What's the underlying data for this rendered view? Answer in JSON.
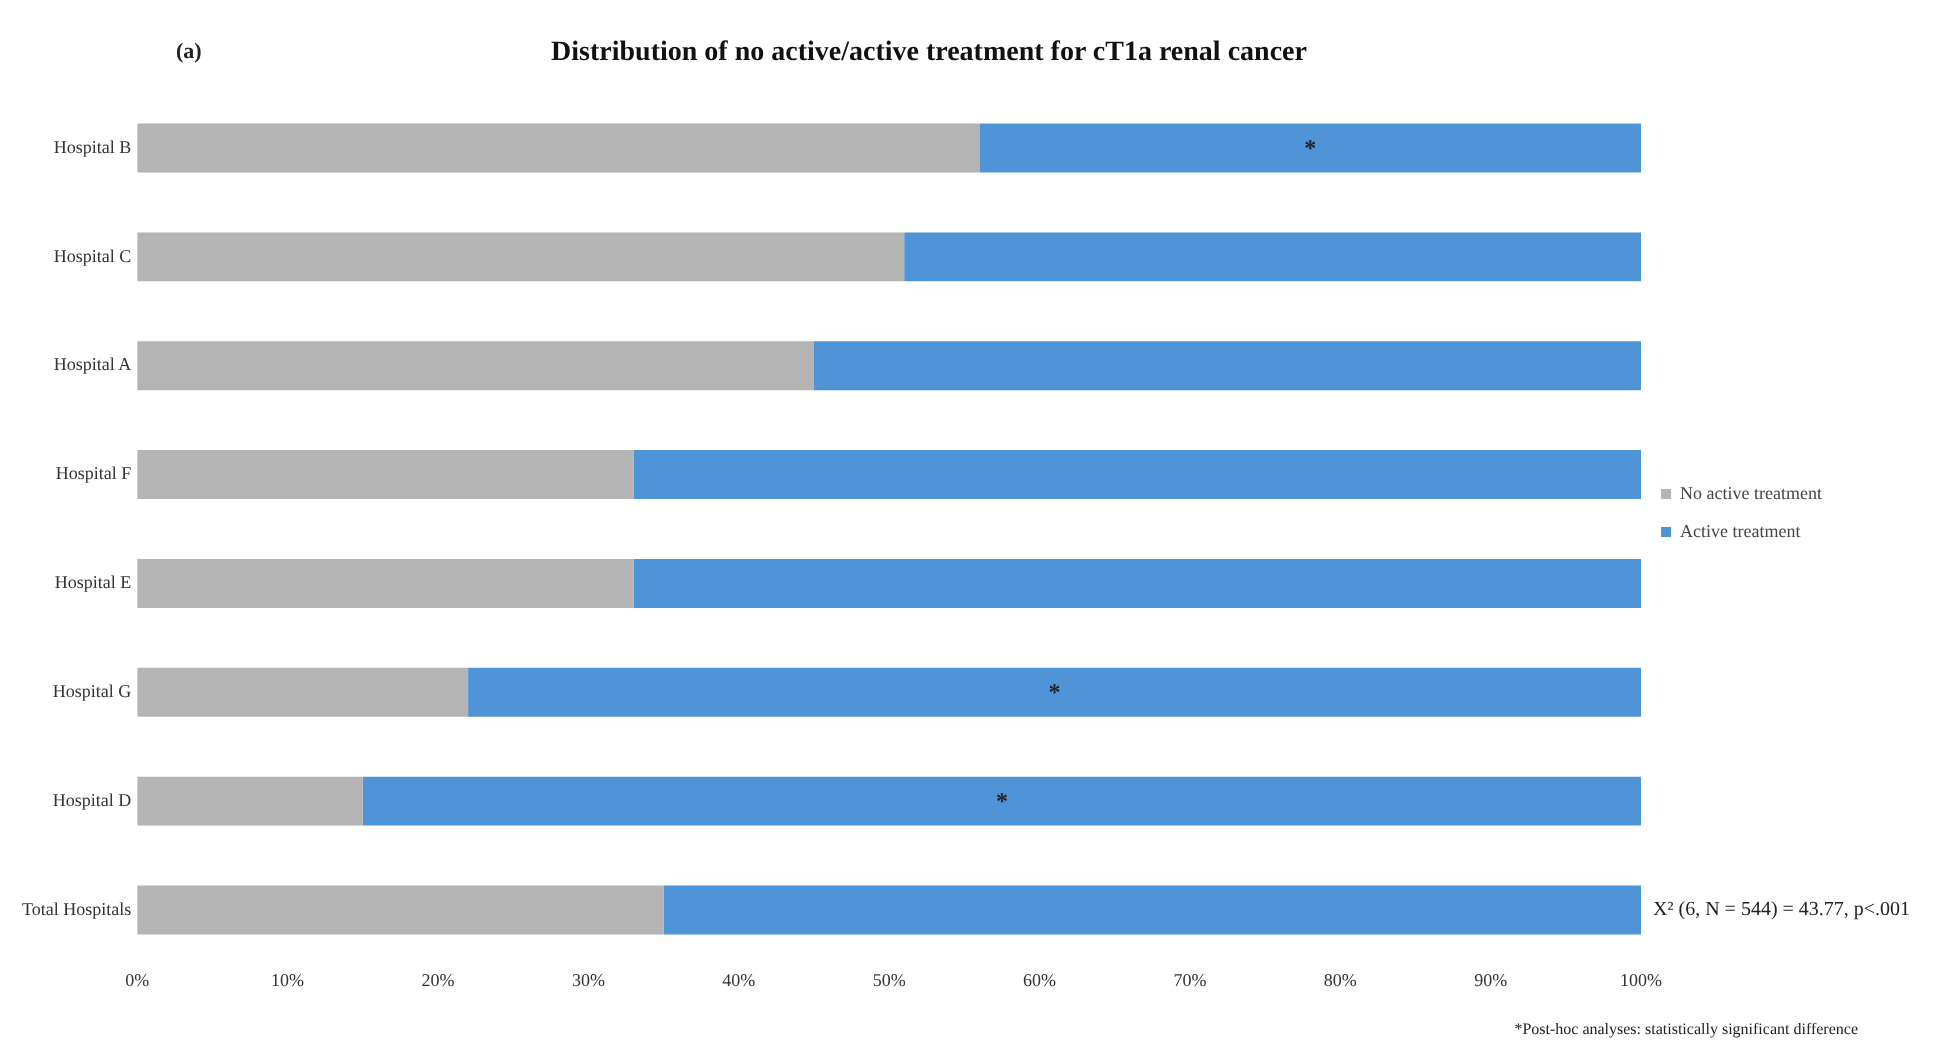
{
  "chart_data": {
    "type": "bar",
    "orientation": "horizontal",
    "stacked": true,
    "title": "Distribution of no active/active treatment for cT1a renal cancer",
    "categories": [
      "Hospital B",
      "Hospital C",
      "Hospital A",
      "Hospital F",
      "Hospital E",
      "Hospital G",
      "Hospital D",
      "Total Hospitals"
    ],
    "series": [
      {
        "name": "No active treatment",
        "color": "#b4b4b4",
        "values": [
          56,
          51,
          45,
          33,
          33,
          22,
          15,
          35
        ]
      },
      {
        "name": "Active treatment",
        "color": "#4f94d6",
        "values": [
          44,
          49,
          55,
          67,
          67,
          78,
          85,
          65
        ],
        "value_labels": [
          "*",
          null,
          null,
          null,
          null,
          "*",
          "*",
          null
        ]
      }
    ],
    "xlim": [
      0,
      100
    ],
    "xticks": [
      {
        "value": 0,
        "label": "0%"
      },
      {
        "value": 10,
        "label": "10%"
      },
      {
        "value": 20,
        "label": "20%"
      },
      {
        "value": 30,
        "label": "30%"
      },
      {
        "value": 40,
        "label": "40%"
      },
      {
        "value": 50,
        "label": "50%"
      },
      {
        "value": 60,
        "label": "60%"
      },
      {
        "value": 70,
        "label": "70%"
      },
      {
        "value": 80,
        "label": "80%"
      },
      {
        "value": 90,
        "label": "90%"
      },
      {
        "value": 100,
        "label": "100%"
      }
    ],
    "legend": "right",
    "grid": false,
    "annotations": [
      "(a)",
      {
        "text": "X² (6, N = 544) = 43.77, p<.001",
        "x": 100,
        "y": "Total Hospitals"
      },
      "*Post-hoc analyses: statistically significant difference"
    ]
  }
}
